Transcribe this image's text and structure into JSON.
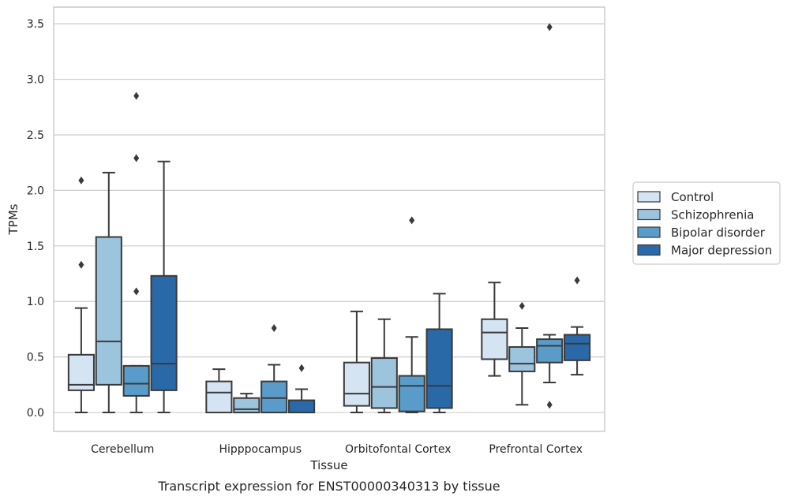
{
  "chart_data": {
    "type": "box",
    "caption": "Transcript expression for ENST00000340313 by tissue",
    "xlabel": "Tissue",
    "ylabel": "TPMs",
    "ylim": [
      -0.17,
      3.65
    ],
    "yticks": [
      "0.0",
      "0.5",
      "1.0",
      "1.5",
      "2.0",
      "2.5",
      "3.0",
      "3.5"
    ],
    "grid": true,
    "legend_position": "right",
    "categories": [
      "Cerebellum",
      "Hipppocampus",
      "Orbitofontal Cortex",
      "Prefrontal Cortex"
    ],
    "series": [
      {
        "name": "Control",
        "color": "#d4e4f3",
        "boxes": [
          {
            "whislo": 0.0,
            "q1": 0.2,
            "med": 0.25,
            "q3": 0.52,
            "whishi": 0.94,
            "fliers": [
              1.33,
              2.09
            ]
          },
          {
            "whislo": 0.0,
            "q1": 0.0,
            "med": 0.18,
            "q3": 0.28,
            "whishi": 0.39,
            "fliers": []
          },
          {
            "whislo": 0.0,
            "q1": 0.06,
            "med": 0.17,
            "q3": 0.45,
            "whishi": 0.91,
            "fliers": []
          },
          {
            "whislo": 0.33,
            "q1": 0.48,
            "med": 0.72,
            "q3": 0.84,
            "whishi": 1.17,
            "fliers": []
          }
        ]
      },
      {
        "name": "Schizophrenia",
        "color": "#9cc4dd",
        "boxes": [
          {
            "whislo": 0.0,
            "q1": 0.25,
            "med": 0.64,
            "q3": 1.58,
            "whishi": 2.16,
            "fliers": []
          },
          {
            "whislo": 0.0,
            "q1": 0.0,
            "med": 0.03,
            "q3": 0.13,
            "whishi": 0.17,
            "fliers": []
          },
          {
            "whislo": 0.0,
            "q1": 0.04,
            "med": 0.23,
            "q3": 0.49,
            "whishi": 0.84,
            "fliers": []
          },
          {
            "whislo": 0.07,
            "q1": 0.37,
            "med": 0.44,
            "q3": 0.59,
            "whishi": 0.76,
            "fliers": [
              0.96
            ]
          }
        ]
      },
      {
        "name": "Bipolar disorder",
        "color": "#5a9cc9",
        "boxes": [
          {
            "whislo": 0.0,
            "q1": 0.15,
            "med": 0.26,
            "q3": 0.42,
            "whishi": 0.42,
            "fliers": [
              1.09,
              2.29,
              2.85
            ]
          },
          {
            "whislo": 0.0,
            "q1": 0.0,
            "med": 0.13,
            "q3": 0.28,
            "whishi": 0.43,
            "fliers": [
              0.76
            ]
          },
          {
            "whislo": 0.0,
            "q1": 0.01,
            "med": 0.24,
            "q3": 0.33,
            "whishi": 0.68,
            "fliers": [
              1.73
            ]
          },
          {
            "whislo": 0.27,
            "q1": 0.45,
            "med": 0.6,
            "q3": 0.66,
            "whishi": 0.7,
            "fliers": [
              0.07,
              3.47
            ]
          }
        ]
      },
      {
        "name": "Major depression",
        "color": "#2a69a8",
        "boxes": [
          {
            "whislo": 0.0,
            "q1": 0.2,
            "med": 0.44,
            "q3": 1.23,
            "whishi": 2.26,
            "fliers": []
          },
          {
            "whislo": 0.0,
            "q1": 0.0,
            "med": 0.0,
            "q3": 0.11,
            "whishi": 0.21,
            "fliers": [
              0.4
            ]
          },
          {
            "whislo": 0.0,
            "q1": 0.04,
            "med": 0.24,
            "q3": 0.75,
            "whishi": 1.07,
            "fliers": []
          },
          {
            "whislo": 0.34,
            "q1": 0.47,
            "med": 0.62,
            "q3": 0.7,
            "whishi": 0.77,
            "fliers": [
              1.19
            ]
          }
        ]
      }
    ]
  }
}
